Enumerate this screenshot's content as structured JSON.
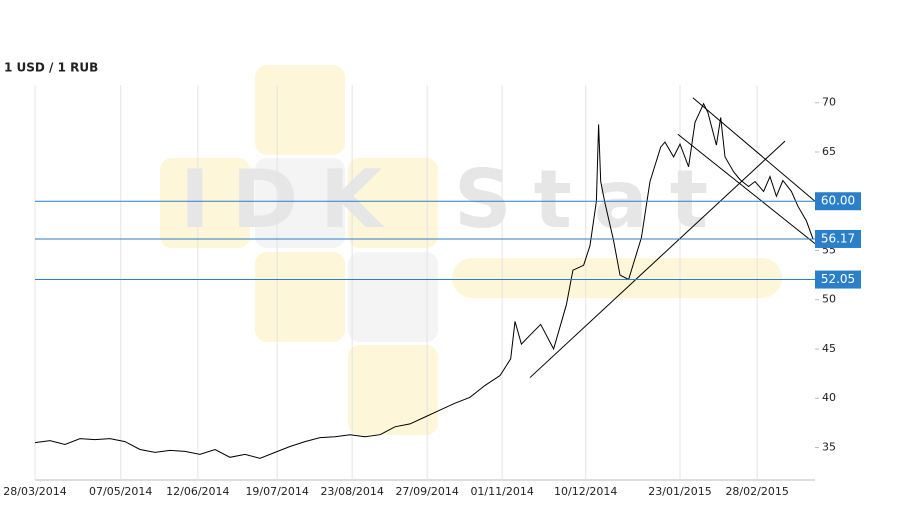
{
  "chart_data": {
    "type": "line",
    "title": "1 USD / 1 RUB",
    "watermark": "IDK Stat",
    "x": [
      "2014-03-28",
      "2014-04-04",
      "2014-04-11",
      "2014-04-18",
      "2014-04-25",
      "2014-05-02",
      "2014-05-09",
      "2014-05-16",
      "2014-05-23",
      "2014-05-30",
      "2014-06-06",
      "2014-06-13",
      "2014-06-20",
      "2014-06-27",
      "2014-07-04",
      "2014-07-11",
      "2014-07-18",
      "2014-07-25",
      "2014-08-01",
      "2014-08-08",
      "2014-08-15",
      "2014-08-22",
      "2014-08-29",
      "2014-09-05",
      "2014-09-12",
      "2014-09-19",
      "2014-09-26",
      "2014-10-03",
      "2014-10-10",
      "2014-10-17",
      "2014-10-24",
      "2014-10-31",
      "2014-11-05",
      "2014-11-07",
      "2014-11-10",
      "2014-11-14",
      "2014-11-19",
      "2014-11-25",
      "2014-12-01",
      "2014-12-04",
      "2014-12-09",
      "2014-12-12",
      "2014-12-15",
      "2014-12-16",
      "2014-12-17",
      "2014-12-19",
      "2014-12-23",
      "2014-12-26",
      "2014-12-30",
      "2015-01-05",
      "2015-01-09",
      "2015-01-14",
      "2015-01-16",
      "2015-01-20",
      "2015-01-23",
      "2015-01-27",
      "2015-01-30",
      "2015-02-03",
      "2015-02-05",
      "2015-02-09",
      "2015-02-11",
      "2015-02-13",
      "2015-02-17",
      "2015-02-20",
      "2015-02-24",
      "2015-02-27",
      "2015-03-03",
      "2015-03-06",
      "2015-03-09",
      "2015-03-12",
      "2015-03-16",
      "2015-03-19",
      "2015-03-23",
      "2015-03-26"
    ],
    "series": [
      {
        "name": "USD/RUB",
        "color": "#000000",
        "values": [
          35.5,
          35.7,
          35.3,
          35.9,
          35.8,
          35.9,
          35.6,
          34.8,
          34.5,
          34.7,
          34.6,
          34.3,
          34.8,
          34.0,
          34.3,
          33.9,
          34.5,
          35.1,
          35.6,
          36.0,
          36.1,
          36.3,
          36.1,
          36.3,
          37.1,
          37.4,
          38.1,
          38.8,
          39.5,
          40.1,
          41.3,
          42.3,
          44.0,
          47.8,
          45.5,
          46.4,
          47.5,
          45.0,
          49.5,
          53.0,
          53.5,
          55.5,
          60.0,
          67.8,
          62.0,
          59.8,
          56.0,
          52.5,
          52.05,
          56.3,
          62.0,
          65.5,
          66.0,
          64.5,
          65.8,
          63.5,
          68.0,
          69.9,
          69.0,
          65.7,
          68.5,
          64.5,
          63.0,
          62.2,
          61.5,
          62.0,
          61.0,
          62.5,
          60.5,
          62.1,
          61.0,
          59.5,
          58.0,
          56.2
        ]
      }
    ],
    "levels": [
      {
        "value": 60.0,
        "label": "60.00"
      },
      {
        "value": 56.17,
        "label": "56.17"
      },
      {
        "value": 52.05,
        "label": "52.05"
      }
    ],
    "level_color": "#2a7fc8",
    "trend_lines": [
      {
        "x": [
          "2014-11-14",
          "2015-03-13"
        ],
        "values": [
          42.1,
          66.1
        ]
      },
      {
        "x": [
          "2015-01-29",
          "2015-03-27"
        ],
        "values": [
          70.5,
          60.0
        ]
      },
      {
        "x": [
          "2015-01-22",
          "2015-03-27"
        ],
        "values": [
          66.8,
          55.7
        ]
      }
    ],
    "xlim": [
      "2014-03-28",
      "2015-03-27"
    ],
    "ylim": [
      31.7,
      71.8
    ],
    "xticks": [
      {
        "value": "2014-03-28",
        "label": "28/03/2014"
      },
      {
        "value": "2014-05-07",
        "label": "07/05/2014"
      },
      {
        "value": "2014-06-12",
        "label": "12/06/2014"
      },
      {
        "value": "2014-07-19",
        "label": "19/07/2014"
      },
      {
        "value": "2014-08-23",
        "label": "23/08/2014"
      },
      {
        "value": "2014-09-27",
        "label": "27/09/2014"
      },
      {
        "value": "2014-11-01",
        "label": "01/11/2014"
      },
      {
        "value": "2014-12-10",
        "label": "10/12/2014"
      },
      {
        "value": "2015-01-23",
        "label": "23/01/2015"
      },
      {
        "value": "2015-02-28",
        "label": "28/02/2015"
      }
    ],
    "yticks": [
      35,
      40,
      45,
      50,
      55,
      60,
      65,
      70
    ],
    "grid": true
  }
}
